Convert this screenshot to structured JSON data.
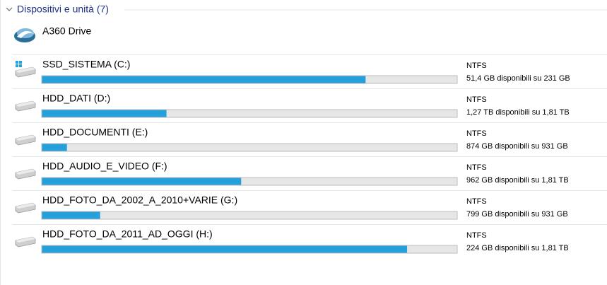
{
  "header": "Dispositivi e unità (7)",
  "cloud": {
    "label": "A360 Drive"
  },
  "drives": [
    {
      "name": "SSD_SISTEMA (C:)",
      "fs": "NTFS",
      "space": "51,4 GB disponibili su 231 GB",
      "used_percent": 78,
      "system": true
    },
    {
      "name": "HDD_DATI (D:)",
      "fs": "NTFS",
      "space": "1,27 TB disponibili su 1,81 TB",
      "used_percent": 30
    },
    {
      "name": "HDD_DOCUMENTI (E:)",
      "fs": "NTFS",
      "space": "874 GB disponibili su 931 GB",
      "used_percent": 6
    },
    {
      "name": "HDD_AUDIO_E_VIDEO (F:)",
      "fs": "NTFS",
      "space": "962 GB disponibili su 1,81 TB",
      "used_percent": 48
    },
    {
      "name": "HDD_FOTO_DA_2002_A_2010+VARIE (G:)",
      "fs": "NTFS",
      "space": "799 GB disponibili su 931 GB",
      "used_percent": 14
    },
    {
      "name": "HDD_FOTO_DA_2011_AD_OGGI (H:)",
      "fs": "NTFS",
      "space": "224 GB disponibili su 1,81 TB",
      "used_percent": 88
    }
  ]
}
